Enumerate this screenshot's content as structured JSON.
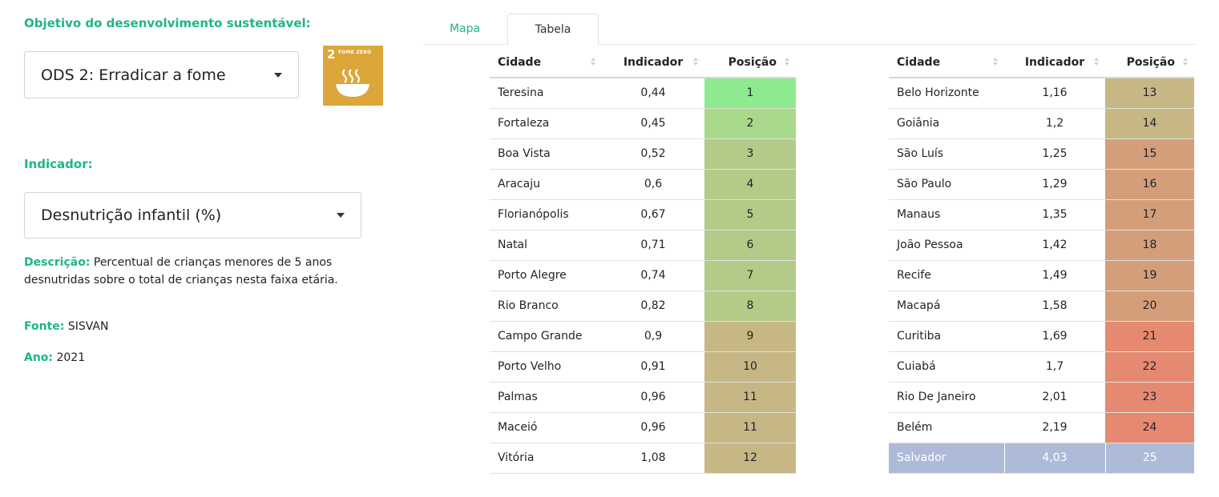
{
  "filters": {
    "sdg_label": "Objetivo do desenvolvimento sustentável:",
    "sdg_value": "ODS 2: Erradicar a fome",
    "indicator_label": "Indicador:",
    "indicator_value": "Desnutrição infantil (%)"
  },
  "sdg_badge": {
    "number": "2",
    "title": "FOME ZERO",
    "icon": "bowl-icon",
    "color": "#dda63a"
  },
  "info": {
    "description_label": "Descrição:",
    "description_text": "Percentual de crianças menores de 5 anos desnutridas sobre o total de crianças nesta faixa etária.",
    "source_label": "Fonte:",
    "source_value": "SISVAN",
    "year_label": "Ano:",
    "year_value": "2021"
  },
  "tabs": [
    {
      "label": "Mapa",
      "active": false
    },
    {
      "label": "Tabela",
      "active": true
    }
  ],
  "table": {
    "headers": [
      "Cidade",
      "Indicador",
      "Posição"
    ],
    "left": [
      {
        "city": "Teresina",
        "value": "0,44",
        "rank": "1",
        "color": "#8eea8e"
      },
      {
        "city": "Fortaleza",
        "value": "0,45",
        "rank": "2",
        "color": "#a8d98a"
      },
      {
        "city": "Boa Vista",
        "value": "0,52",
        "rank": "3",
        "color": "#b3cb88"
      },
      {
        "city": "Aracaju",
        "value": "0,6",
        "rank": "4",
        "color": "#b3cb88"
      },
      {
        "city": "Florianópolis",
        "value": "0,67",
        "rank": "5",
        "color": "#b3cb88"
      },
      {
        "city": "Natal",
        "value": "0,71",
        "rank": "6",
        "color": "#b3cb88"
      },
      {
        "city": "Porto Alegre",
        "value": "0,74",
        "rank": "7",
        "color": "#b3cb88"
      },
      {
        "city": "Rio Branco",
        "value": "0,82",
        "rank": "8",
        "color": "#b3cb88"
      },
      {
        "city": "Campo Grande",
        "value": "0,9",
        "rank": "9",
        "color": "#c6b785"
      },
      {
        "city": "Porto Velho",
        "value": "0,91",
        "rank": "10",
        "color": "#c6b785"
      },
      {
        "city": "Palmas",
        "value": "0,96",
        "rank": "11",
        "color": "#c6b785"
      },
      {
        "city": "Maceió",
        "value": "0,96",
        "rank": "11",
        "color": "#c6b785"
      },
      {
        "city": "Vitória",
        "value": "1,08",
        "rank": "12",
        "color": "#c6b785"
      }
    ],
    "right": [
      {
        "city": "Belo Horizonte",
        "value": "1,16",
        "rank": "13",
        "color": "#c6b785"
      },
      {
        "city": "Goiânia",
        "value": "1,2",
        "rank": "14",
        "color": "#c6b785"
      },
      {
        "city": "São Luís",
        "value": "1,25",
        "rank": "15",
        "color": "#d49e7a"
      },
      {
        "city": "São Paulo",
        "value": "1,29",
        "rank": "16",
        "color": "#d49e7a"
      },
      {
        "city": "Manaus",
        "value": "1,35",
        "rank": "17",
        "color": "#d49e7a"
      },
      {
        "city": "João Pessoa",
        "value": "1,42",
        "rank": "18",
        "color": "#d49e7a"
      },
      {
        "city": "Recife",
        "value": "1,49",
        "rank": "19",
        "color": "#d49e7a"
      },
      {
        "city": "Macapá",
        "value": "1,58",
        "rank": "20",
        "color": "#d49e7a"
      },
      {
        "city": "Curitiba",
        "value": "1,69",
        "rank": "21",
        "color": "#e58a70"
      },
      {
        "city": "Cuiabá",
        "value": "1,7",
        "rank": "22",
        "color": "#e58a70"
      },
      {
        "city": "Rio De Janeiro",
        "value": "2,01",
        "rank": "23",
        "color": "#e58a70"
      },
      {
        "city": "Belém",
        "value": "2,19",
        "rank": "24",
        "color": "#e58a70"
      },
      {
        "city": "Salvador",
        "value": "4,03",
        "rank": "25",
        "color": "#aebbd8",
        "highlighted": true
      }
    ]
  }
}
